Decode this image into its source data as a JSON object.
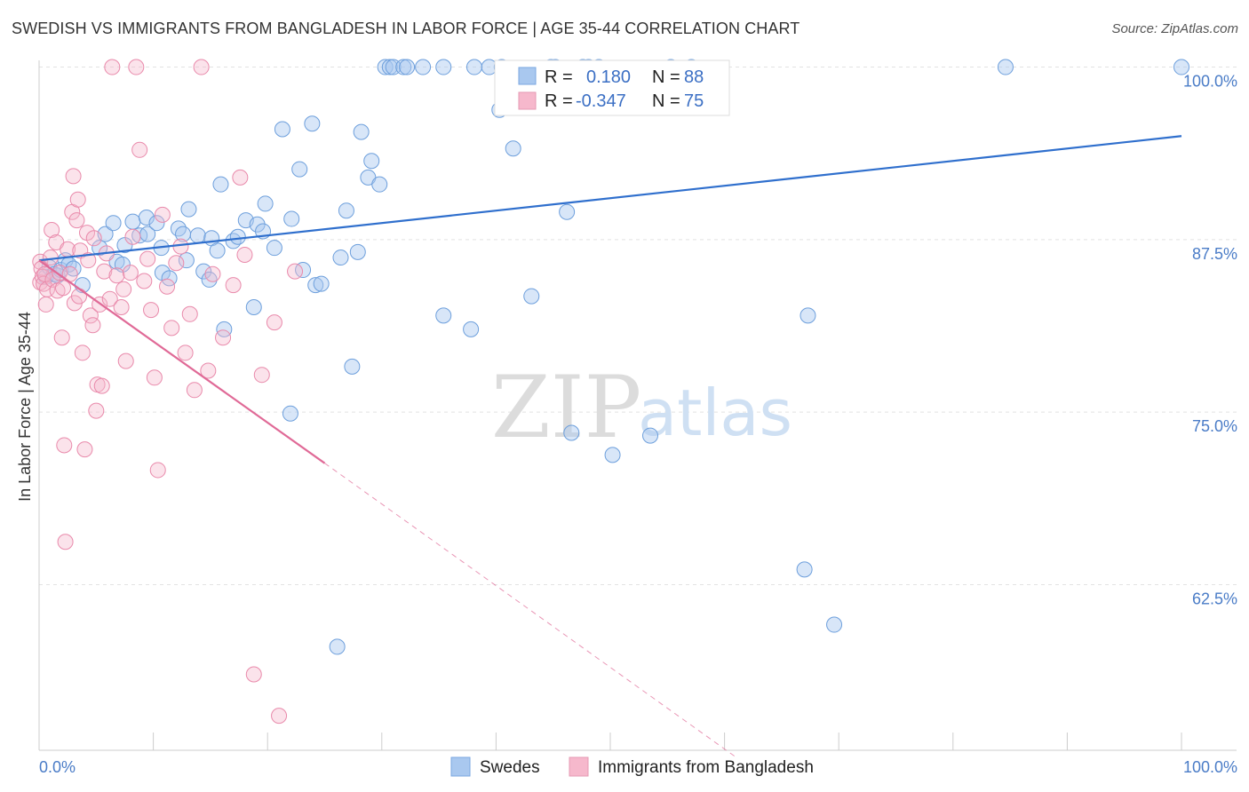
{
  "title": "SWEDISH VS IMMIGRANTS FROM BANGLADESH IN LABOR FORCE | AGE 35-44 CORRELATION CHART",
  "source": "Source: ZipAtlas.com",
  "watermark": {
    "zip": "ZIP",
    "atlas": "atlas"
  },
  "legend_box": {
    "row1": {
      "r_label": "R =",
      "r_value": "0.180",
      "n_label": "N =",
      "n_value": "88"
    },
    "row2": {
      "r_label": "R =",
      "r_value": "-0.347",
      "n_label": "N =",
      "n_value": "75"
    }
  },
  "chart_data": {
    "type": "scatter",
    "ylabel": "In Labor Force | Age 35-44",
    "xlabel": "",
    "xlim": [
      0,
      100
    ],
    "ylim": [
      50.5,
      101
    ],
    "x_tick_labels": [
      "0.0%",
      "100.0%"
    ],
    "y_ticks": [
      62.5,
      75.0,
      87.5,
      100.0
    ],
    "y_tick_labels": [
      "62.5%",
      "75.0%",
      "87.5%",
      "100.0%"
    ],
    "grid": true,
    "legend_position": "bottom",
    "colors": {
      "swedes": "#a9c8ef",
      "swedes_line": "#2f6fcd",
      "bangladesh": "#f6b8cc",
      "bangladesh_line": "#e06a97"
    },
    "series": [
      {
        "name": "Swedes",
        "trend": {
          "x": [
            0,
            100
          ],
          "y": [
            86.0,
            95.0
          ]
        },
        "points": [
          [
            0.6,
            84.8
          ],
          [
            0.9,
            85.5
          ],
          [
            1.3,
            85.0
          ],
          [
            1.6,
            84.9
          ],
          [
            1.9,
            85.3
          ],
          [
            2.3,
            86.0
          ],
          [
            2.6,
            85.7
          ],
          [
            3.0,
            85.4
          ],
          [
            3.8,
            84.2
          ],
          [
            5.3,
            86.9
          ],
          [
            5.8,
            87.9
          ],
          [
            6.5,
            88.7
          ],
          [
            6.8,
            85.9
          ],
          [
            7.3,
            85.7
          ],
          [
            7.5,
            87.1
          ],
          [
            8.2,
            88.8
          ],
          [
            8.8,
            87.8
          ],
          [
            9.4,
            89.1
          ],
          [
            9.5,
            87.9
          ],
          [
            10.3,
            88.7
          ],
          [
            10.7,
            86.9
          ],
          [
            10.8,
            85.1
          ],
          [
            11.4,
            84.7
          ],
          [
            12.2,
            88.3
          ],
          [
            12.6,
            87.9
          ],
          [
            12.9,
            86.0
          ],
          [
            13.1,
            89.7
          ],
          [
            13.9,
            87.8
          ],
          [
            14.4,
            85.2
          ],
          [
            14.9,
            84.6
          ],
          [
            15.1,
            87.6
          ],
          [
            15.6,
            86.7
          ],
          [
            15.9,
            91.5
          ],
          [
            16.2,
            81.0
          ],
          [
            17.0,
            87.4
          ],
          [
            17.4,
            87.7
          ],
          [
            18.1,
            88.9
          ],
          [
            18.8,
            82.6
          ],
          [
            19.1,
            88.6
          ],
          [
            19.6,
            88.1
          ],
          [
            19.8,
            90.1
          ],
          [
            20.6,
            86.9
          ],
          [
            21.3,
            95.5
          ],
          [
            22.0,
            74.9
          ],
          [
            22.1,
            89.0
          ],
          [
            22.8,
            92.6
          ],
          [
            23.1,
            85.3
          ],
          [
            23.9,
            95.9
          ],
          [
            24.2,
            84.2
          ],
          [
            24.7,
            84.3
          ],
          [
            26.1,
            58.0
          ],
          [
            26.4,
            86.2
          ],
          [
            26.9,
            89.6
          ],
          [
            27.4,
            78.3
          ],
          [
            27.9,
            86.6
          ],
          [
            28.2,
            95.3
          ],
          [
            28.8,
            92.0
          ],
          [
            29.1,
            93.2
          ],
          [
            29.8,
            91.5
          ],
          [
            30.3,
            100
          ],
          [
            30.7,
            100
          ],
          [
            31.0,
            100
          ],
          [
            31.9,
            100
          ],
          [
            32.2,
            100
          ],
          [
            33.6,
            100
          ],
          [
            35.4,
            100
          ],
          [
            35.4,
            82.0
          ],
          [
            37.8,
            81.0
          ],
          [
            38.1,
            100
          ],
          [
            39.4,
            100
          ],
          [
            40.3,
            96.9
          ],
          [
            40.5,
            100
          ],
          [
            41.5,
            94.1
          ],
          [
            43.1,
            83.4
          ],
          [
            44.8,
            100
          ],
          [
            45.2,
            100
          ],
          [
            46.2,
            89.5
          ],
          [
            46.6,
            73.5
          ],
          [
            47.6,
            100
          ],
          [
            48.1,
            100
          ],
          [
            49.0,
            100
          ],
          [
            50.2,
            71.9
          ],
          [
            53.5,
            73.3
          ],
          [
            55.3,
            100
          ],
          [
            57.1,
            100
          ],
          [
            67.0,
            63.6
          ],
          [
            67.3,
            82.0
          ],
          [
            69.6,
            59.6
          ],
          [
            84.6,
            100
          ],
          [
            100,
            100
          ]
        ]
      },
      {
        "name": "Immigrants from Bangladesh",
        "trend": {
          "x": [
            0,
            25
          ],
          "y": [
            86.0,
            71.3
          ]
        },
        "trend_dashed": {
          "x": [
            25,
            61
          ],
          "y": [
            71.3,
            50.0
          ]
        },
        "points": [
          [
            0.1,
            85.9
          ],
          [
            0.1,
            84.4
          ],
          [
            0.2,
            85.4
          ],
          [
            0.3,
            84.8
          ],
          [
            0.4,
            84.3
          ],
          [
            0.5,
            85.0
          ],
          [
            0.6,
            82.8
          ],
          [
            0.7,
            83.9
          ],
          [
            1.0,
            86.2
          ],
          [
            1.1,
            88.2
          ],
          [
            1.2,
            84.6
          ],
          [
            1.5,
            87.3
          ],
          [
            1.6,
            83.8
          ],
          [
            1.8,
            85.1
          ],
          [
            2.0,
            80.4
          ],
          [
            2.1,
            84.0
          ],
          [
            2.2,
            72.6
          ],
          [
            2.3,
            65.6
          ],
          [
            2.5,
            86.8
          ],
          [
            2.7,
            85.0
          ],
          [
            2.9,
            89.5
          ],
          [
            3.0,
            92.1
          ],
          [
            3.1,
            82.9
          ],
          [
            3.3,
            88.9
          ],
          [
            3.4,
            90.4
          ],
          [
            3.5,
            83.4
          ],
          [
            3.6,
            86.7
          ],
          [
            3.8,
            79.3
          ],
          [
            4.0,
            72.3
          ],
          [
            4.2,
            88.0
          ],
          [
            4.3,
            86.0
          ],
          [
            4.5,
            82.0
          ],
          [
            4.7,
            81.3
          ],
          [
            4.8,
            87.6
          ],
          [
            5.0,
            75.1
          ],
          [
            5.1,
            77.0
          ],
          [
            5.3,
            82.8
          ],
          [
            5.5,
            76.9
          ],
          [
            5.7,
            85.2
          ],
          [
            5.9,
            86.5
          ],
          [
            6.2,
            83.2
          ],
          [
            6.4,
            100
          ],
          [
            6.8,
            84.9
          ],
          [
            7.2,
            82.6
          ],
          [
            7.4,
            83.9
          ],
          [
            7.6,
            78.7
          ],
          [
            8.0,
            85.1
          ],
          [
            8.2,
            87.7
          ],
          [
            8.5,
            100
          ],
          [
            8.8,
            94.0
          ],
          [
            9.2,
            84.5
          ],
          [
            9.5,
            86.1
          ],
          [
            9.8,
            82.4
          ],
          [
            10.1,
            77.5
          ],
          [
            10.4,
            70.8
          ],
          [
            10.8,
            89.3
          ],
          [
            11.2,
            84.1
          ],
          [
            11.6,
            81.1
          ],
          [
            12.0,
            85.8
          ],
          [
            12.4,
            87.0
          ],
          [
            12.8,
            79.3
          ],
          [
            13.2,
            82.1
          ],
          [
            13.6,
            76.6
          ],
          [
            14.2,
            100
          ],
          [
            14.8,
            78.0
          ],
          [
            15.2,
            85.0
          ],
          [
            16.1,
            80.4
          ],
          [
            17.0,
            84.2
          ],
          [
            17.6,
            92.0
          ],
          [
            18.0,
            86.4
          ],
          [
            18.8,
            56.0
          ],
          [
            19.5,
            77.7
          ],
          [
            20.6,
            81.5
          ],
          [
            21.0,
            53.0
          ],
          [
            22.4,
            85.2
          ]
        ]
      }
    ]
  },
  "bottom_legend": {
    "item1": "Swedes",
    "item2": "Immigrants from Bangladesh"
  }
}
